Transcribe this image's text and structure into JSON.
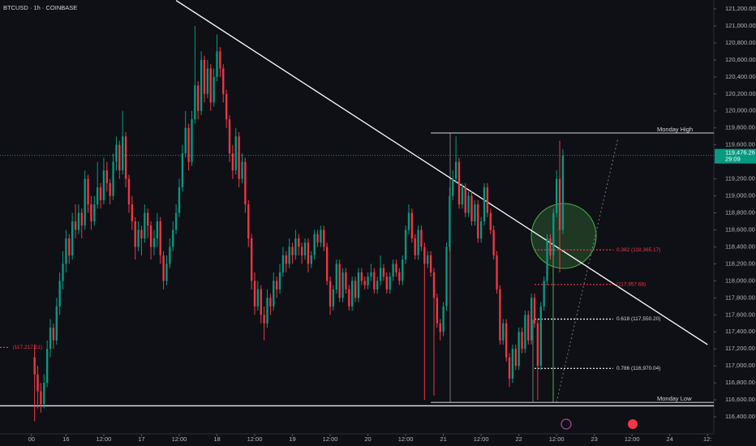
{
  "chart_data": {
    "type": "candlestick",
    "title": "BTCUSD · 1h · COINBASE",
    "up_color": "#089981",
    "down_color": "#f23645",
    "candles": [
      [
        117100,
        117250,
        116350,
        116900
      ],
      [
        116900,
        117000,
        116500,
        116700
      ],
      [
        116700,
        116800,
        116450,
        116550
      ],
      [
        116550,
        116900,
        116500,
        116800
      ],
      [
        116800,
        117300,
        116750,
        117200
      ],
      [
        117200,
        117550,
        117100,
        117450
      ],
      [
        117450,
        117500,
        117200,
        117300
      ],
      [
        117300,
        117800,
        117250,
        117700
      ],
      [
        117700,
        118100,
        117600,
        118000
      ],
      [
        118000,
        118350,
        117900,
        118200
      ],
      [
        118200,
        118600,
        118100,
        118500
      ],
      [
        118500,
        118550,
        118200,
        118300
      ],
      [
        118300,
        118800,
        118250,
        118700
      ],
      [
        118700,
        118900,
        118500,
        118600
      ],
      [
        118600,
        118900,
        118550,
        118800
      ],
      [
        118800,
        118850,
        118500,
        118650
      ],
      [
        118650,
        119300,
        118600,
        119200
      ],
      [
        119200,
        119250,
        118800,
        118900
      ],
      [
        118900,
        119000,
        118600,
        118700
      ],
      [
        118700,
        119000,
        118650,
        118900
      ],
      [
        118900,
        119400,
        118850,
        119100
      ],
      [
        119100,
        119150,
        118850,
        118950
      ],
      [
        118950,
        119450,
        118900,
        119300
      ],
      [
        119300,
        119400,
        119050,
        119150
      ],
      [
        119150,
        119200,
        118900,
        119000
      ],
      [
        119000,
        119500,
        118950,
        119400
      ],
      [
        119400,
        119700,
        119300,
        119600
      ],
      [
        119600,
        119650,
        119200,
        119300
      ],
      [
        119300,
        120000,
        119250,
        119700
      ],
      [
        119700,
        119750,
        119100,
        119200
      ],
      [
        119200,
        119250,
        118800,
        118900
      ],
      [
        118900,
        119000,
        118600,
        118700
      ],
      [
        118700,
        118750,
        118250,
        118400
      ],
      [
        118400,
        118700,
        118350,
        118600
      ],
      [
        118600,
        118650,
        118300,
        118500
      ],
      [
        118500,
        118900,
        118450,
        118800
      ],
      [
        118800,
        118850,
        118500,
        118650
      ],
      [
        118650,
        118700,
        118250,
        118400
      ],
      [
        118400,
        118600,
        118300,
        118500
      ],
      [
        118500,
        118800,
        118400,
        118700
      ],
      [
        118700,
        118750,
        118200,
        118300
      ],
      [
        118300,
        118350,
        117900,
        118000
      ],
      [
        118000,
        118300,
        117950,
        118200
      ],
      [
        118200,
        118500,
        118150,
        118400
      ],
      [
        118400,
        118700,
        118350,
        118600
      ],
      [
        118600,
        118900,
        118550,
        118800
      ],
      [
        118800,
        119200,
        118750,
        119100
      ],
      [
        119100,
        119600,
        119050,
        119500
      ],
      [
        119500,
        120000,
        119450,
        119800
      ],
      [
        119800,
        119850,
        119300,
        119400
      ],
      [
        119400,
        120000,
        119350,
        119900
      ],
      [
        119900,
        121000,
        119850,
        120300
      ],
      [
        120300,
        120350,
        119900,
        120000
      ],
      [
        120000,
        120700,
        119950,
        120600
      ],
      [
        120600,
        120650,
        120100,
        120200
      ],
      [
        120200,
        120600,
        120150,
        120500
      ],
      [
        120500,
        120550,
        120000,
        120100
      ],
      [
        120100,
        120500,
        120050,
        120400
      ],
      [
        120400,
        120900,
        120350,
        120700
      ],
      [
        120700,
        120750,
        120400,
        120500
      ],
      [
        120500,
        120550,
        120100,
        120200
      ],
      [
        120200,
        120250,
        119800,
        119900
      ],
      [
        119900,
        119950,
        119400,
        119500
      ],
      [
        119500,
        119600,
        119200,
        119300
      ],
      [
        119300,
        119800,
        119250,
        119700
      ],
      [
        119700,
        119750,
        119100,
        119200
      ],
      [
        119200,
        119500,
        119150,
        119400
      ],
      [
        119400,
        119450,
        118800,
        118900
      ],
      [
        118900,
        118950,
        118400,
        118500
      ],
      [
        118500,
        118550,
        117900,
        118000
      ],
      [
        118000,
        118100,
        117600,
        117700
      ],
      [
        117700,
        118000,
        117650,
        117900
      ],
      [
        117900,
        117950,
        117500,
        117600
      ],
      [
        117600,
        117700,
        117300,
        117500
      ],
      [
        117500,
        117900,
        117450,
        117800
      ],
      [
        117800,
        117850,
        117600,
        117700
      ],
      [
        117700,
        118100,
        117650,
        118000
      ],
      [
        118000,
        118050,
        117800,
        117900
      ],
      [
        117900,
        118200,
        117850,
        118100
      ],
      [
        118100,
        118400,
        118050,
        118300
      ],
      [
        118300,
        118350,
        118100,
        118200
      ],
      [
        118200,
        118500,
        118150,
        118400
      ],
      [
        118400,
        118450,
        118200,
        118300
      ],
      [
        118300,
        118600,
        118250,
        118500
      ],
      [
        118500,
        118550,
        118300,
        118400
      ],
      [
        118400,
        118450,
        118200,
        118300
      ],
      [
        118300,
        118500,
        118250,
        118450
      ],
      [
        118450,
        118500,
        118100,
        118200
      ],
      [
        118200,
        118350,
        118150,
        118300
      ],
      [
        118300,
        118600,
        118250,
        118550
      ],
      [
        118550,
        118600,
        118400,
        118450
      ],
      [
        118450,
        118650,
        118400,
        118600
      ],
      [
        118600,
        118650,
        118350,
        118400
      ],
      [
        118400,
        118450,
        117950,
        118000
      ],
      [
        118000,
        118050,
        117600,
        117700
      ],
      [
        117700,
        117950,
        117650,
        117900
      ],
      [
        117900,
        118250,
        117850,
        118200
      ],
      [
        118200,
        118250,
        117750,
        117800
      ],
      [
        117800,
        118150,
        117750,
        118100
      ],
      [
        118100,
        118150,
        117850,
        117900
      ],
      [
        117900,
        117950,
        117650,
        117700
      ],
      [
        117700,
        118050,
        117650,
        118000
      ],
      [
        118000,
        118050,
        117750,
        117800
      ],
      [
        117800,
        118150,
        117750,
        118100
      ],
      [
        118100,
        118150,
        117950,
        118000
      ],
      [
        118000,
        118050,
        117900,
        117950
      ],
      [
        117950,
        118100,
        117900,
        118050
      ],
      [
        118050,
        118200,
        118000,
        118100
      ],
      [
        118100,
        118150,
        117850,
        117900
      ],
      [
        117900,
        118050,
        117850,
        118000
      ],
      [
        118000,
        118300,
        117950,
        118150
      ],
      [
        118150,
        118200,
        118000,
        118050
      ],
      [
        118050,
        118100,
        117850,
        117900
      ],
      [
        117900,
        118100,
        117850,
        118050
      ],
      [
        118050,
        118250,
        118000,
        118200
      ],
      [
        118200,
        118250,
        118050,
        118100
      ],
      [
        118100,
        118150,
        117950,
        118000
      ],
      [
        118000,
        118300,
        117950,
        118250
      ],
      [
        118250,
        118650,
        118200,
        118600
      ],
      [
        118600,
        118900,
        118550,
        118800
      ],
      [
        118800,
        118850,
        118450,
        118500
      ],
      [
        118500,
        118550,
        118250,
        118300
      ],
      [
        118300,
        118650,
        118250,
        118600
      ],
      [
        118600,
        118650,
        118350,
        118400
      ],
      [
        118400,
        118450,
        116600,
        118200
      ],
      [
        118200,
        118350,
        118150,
        118300
      ],
      [
        118300,
        118350,
        118050,
        118100
      ],
      [
        118100,
        118150,
        116650,
        117800
      ],
      [
        117800,
        117850,
        117450,
        117500
      ],
      [
        117500,
        117550,
        117300,
        117400
      ],
      [
        117400,
        117750,
        117350,
        117700
      ],
      [
        117700,
        118450,
        117650,
        118400
      ],
      [
        118400,
        119100,
        118350,
        119000
      ],
      [
        119000,
        119300,
        118950,
        119200
      ],
      [
        119200,
        119700,
        119150,
        119400
      ],
      [
        119400,
        119450,
        118850,
        118900
      ],
      [
        118900,
        119150,
        118850,
        119100
      ],
      [
        119100,
        119150,
        118750,
        118800
      ],
      [
        118800,
        119050,
        118750,
        119000
      ],
      [
        119000,
        119050,
        118650,
        118700
      ],
      [
        118700,
        118950,
        118650,
        118900
      ],
      [
        118900,
        118950,
        118450,
        118500
      ],
      [
        118500,
        118750,
        118450,
        118700
      ],
      [
        118700,
        119150,
        118650,
        119100
      ],
      [
        119100,
        119150,
        118750,
        118800
      ],
      [
        118800,
        118850,
        118550,
        118600
      ],
      [
        118600,
        118650,
        118250,
        118300
      ],
      [
        118300,
        118350,
        117850,
        117900
      ],
      [
        117900,
        117950,
        117250,
        117300
      ],
      [
        117300,
        117550,
        117250,
        117500
      ],
      [
        117500,
        117550,
        117050,
        117100
      ],
      [
        117100,
        117150,
        116750,
        116850
      ],
      [
        116850,
        117250,
        116800,
        117200
      ],
      [
        117200,
        117250,
        116950,
        117000
      ],
      [
        117000,
        117450,
        116950,
        117400
      ],
      [
        117400,
        117450,
        117150,
        117200
      ],
      [
        117200,
        117650,
        117150,
        117600
      ],
      [
        117600,
        117650,
        117250,
        117300
      ],
      [
        117300,
        117850,
        117250,
        117800
      ],
      [
        117800,
        117850,
        117450,
        117500
      ],
      [
        117500,
        117550,
        116600,
        117000
      ],
      [
        117000,
        117750,
        116950,
        117700
      ],
      [
        117700,
        118050,
        117650,
        118000
      ],
      [
        118000,
        118550,
        117950,
        118500
      ],
      [
        118500,
        118550,
        118250,
        118300
      ],
      [
        118300,
        118850,
        118250,
        118800
      ],
      [
        118800,
        119300,
        118750,
        119200
      ],
      [
        119200,
        119650,
        118100,
        118600
      ],
      [
        118600,
        119550,
        118550,
        119476.26
      ]
    ],
    "xticks": [
      {
        "value": -1,
        "label": "00"
      },
      {
        "value": 10,
        "label": "16"
      },
      {
        "value": 22,
        "label": "12:00"
      },
      {
        "value": 34,
        "label": "17"
      },
      {
        "value": 46,
        "label": "12:00"
      },
      {
        "value": 58,
        "label": "18"
      },
      {
        "value": 70,
        "label": "12:00"
      },
      {
        "value": 82,
        "label": "19"
      },
      {
        "value": 94,
        "label": "12:00"
      },
      {
        "value": 106,
        "label": "20"
      },
      {
        "value": 118,
        "label": "12:00"
      },
      {
        "value": 130,
        "label": "21"
      },
      {
        "value": 142,
        "label": "12:00"
      },
      {
        "value": 154,
        "label": "22"
      },
      {
        "value": 166,
        "label": "12:00"
      },
      {
        "value": 178,
        "label": "23"
      },
      {
        "value": 190,
        "label": "12:00"
      },
      {
        "value": 202,
        "label": "24"
      },
      {
        "value": 214,
        "label": "12:"
      }
    ],
    "xlim": [
      -11,
      216
    ],
    "ylim": [
      116200,
      121305
    ],
    "yticks": [
      {
        "value": 116400,
        "label": "116,400.00"
      },
      {
        "value": 116600,
        "label": "116,600.00"
      },
      {
        "value": 116800,
        "label": "116,800.00"
      },
      {
        "value": 117000,
        "label": "117,000.00"
      },
      {
        "value": 117200,
        "label": "117,200.00"
      },
      {
        "value": 117400,
        "label": "117,400.00"
      },
      {
        "value": 117600,
        "label": "117,600.00"
      },
      {
        "value": 117800,
        "label": "117,800.00"
      },
      {
        "value": 118000,
        "label": "118,000.00"
      },
      {
        "value": 118200,
        "label": "118,200.00"
      },
      {
        "value": 118400,
        "label": "118,400.00"
      },
      {
        "value": 118600,
        "label": "118,600.00"
      },
      {
        "value": 118800,
        "label": "118,800.00"
      },
      {
        "value": 119000,
        "label": "119,000.00"
      },
      {
        "value": 119200,
        "label": "119,200.00"
      },
      {
        "value": 119600,
        "label": "119,600.00"
      },
      {
        "value": 119800,
        "label": "119,800.00"
      },
      {
        "value": 120000,
        "label": "120,000.00"
      },
      {
        "value": 120200,
        "label": "120,200.00"
      },
      {
        "value": 120400,
        "label": "120,400.00"
      },
      {
        "value": 120600,
        "label": "120,600.00"
      },
      {
        "value": 120800,
        "label": "120,800.00"
      },
      {
        "value": 121000,
        "label": "121,000.00"
      },
      {
        "value": 121200,
        "label": "121,200.00"
      }
    ],
    "last_price": {
      "value": 119476.26,
      "label": "119,476.26"
    },
    "countdown": "29:09",
    "levels": [
      {
        "name": "Monday High",
        "value": 119740,
        "from": 126
      },
      {
        "name": "Monday Low",
        "value": 116570,
        "from": 126
      }
    ],
    "support_line": 116530,
    "trendline": [
      [
        45,
        121300
      ],
      [
        214,
        117250
      ]
    ],
    "fib": [
      {
        "label": "0.382 (118,365.17)",
        "value": 118365.17,
        "from": 159,
        "to": 184,
        "color": "#f23645"
      },
      {
        "label": "(117,957.68)",
        "value": 117957.68,
        "from": 159,
        "to": 184,
        "color": "#f23645"
      },
      {
        "label": "0.618 (117,550.20)",
        "value": 117550.2,
        "from": 159,
        "to": 184,
        "color": "#ffffff"
      },
      {
        "label": "0.786 (116,970.04)",
        "value": 116970.04,
        "from": 159,
        "to": 184,
        "color": "#ffffff"
      },
      {
        "label": "(117,217.21)",
        "value": 117217.21,
        "from": -11,
        "to": -8,
        "color": "#f23645"
      }
    ]
  }
}
